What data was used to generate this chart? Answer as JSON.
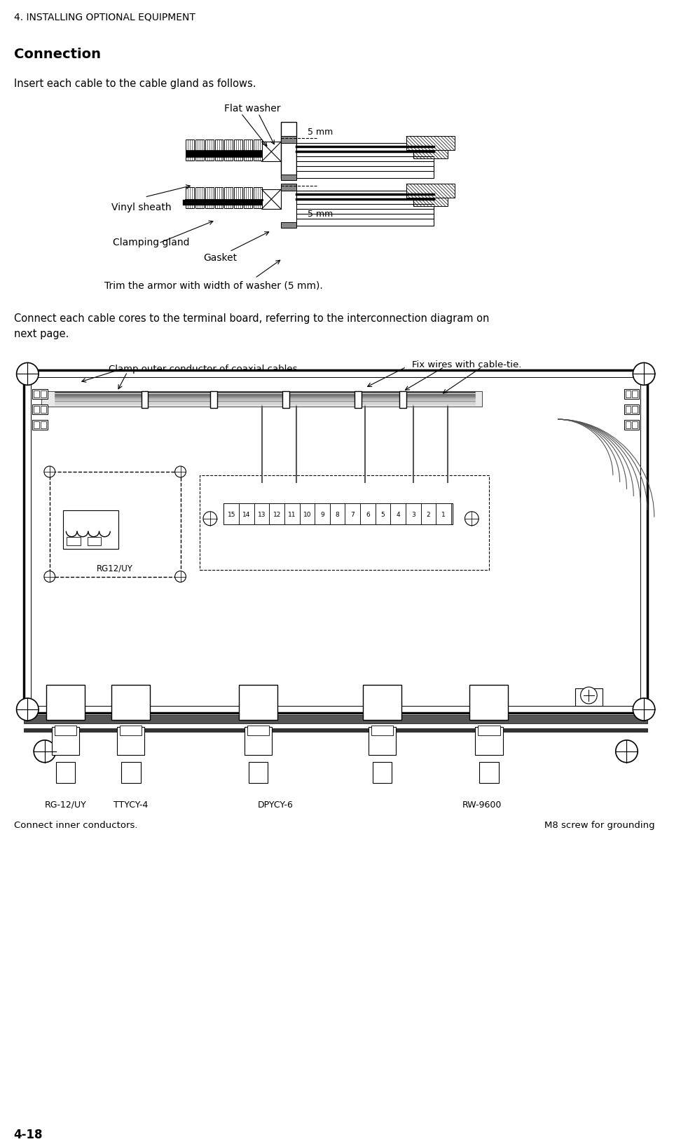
{
  "page_header": "4. INSTALLING OPTIONAL EQUIPMENT",
  "page_number": "4-18",
  "section_title": "Connection",
  "section_subtitle": "Insert each cable to the cable gland as follows.",
  "diagram1_labels": {
    "flat_washer": "Flat washer",
    "vinyl_sheath": "Vinyl sheath",
    "clamping_gland": "Clamping gland",
    "gasket": "Gasket",
    "5mm_top": "5 mm",
    "5mm_bottom": "5 mm",
    "trim_note": "Trim the armor with width of washer (5 mm)."
  },
  "paragraph2": "Connect each cable cores to the terminal board, referring to the interconnection diagram on\nnext page.",
  "diagram2_labels": {
    "clamp_outer": "Clamp outer conductor of coaxial cables.",
    "fix_wires": "Fix wires with cable-tie.",
    "rg12uy_box": "RG12/UY",
    "rg12uy_bottom": "RG-12/UY",
    "ttycy4": "TTYCY-4",
    "dpycy6": "DPYCY-6",
    "rw9600": "RW-9600",
    "connect_inner": "Connect inner conductors.",
    "m8_screw": "M8 screw for grounding"
  },
  "bg_color": "#ffffff",
  "text_color": "#000000",
  "line_color": "#000000"
}
